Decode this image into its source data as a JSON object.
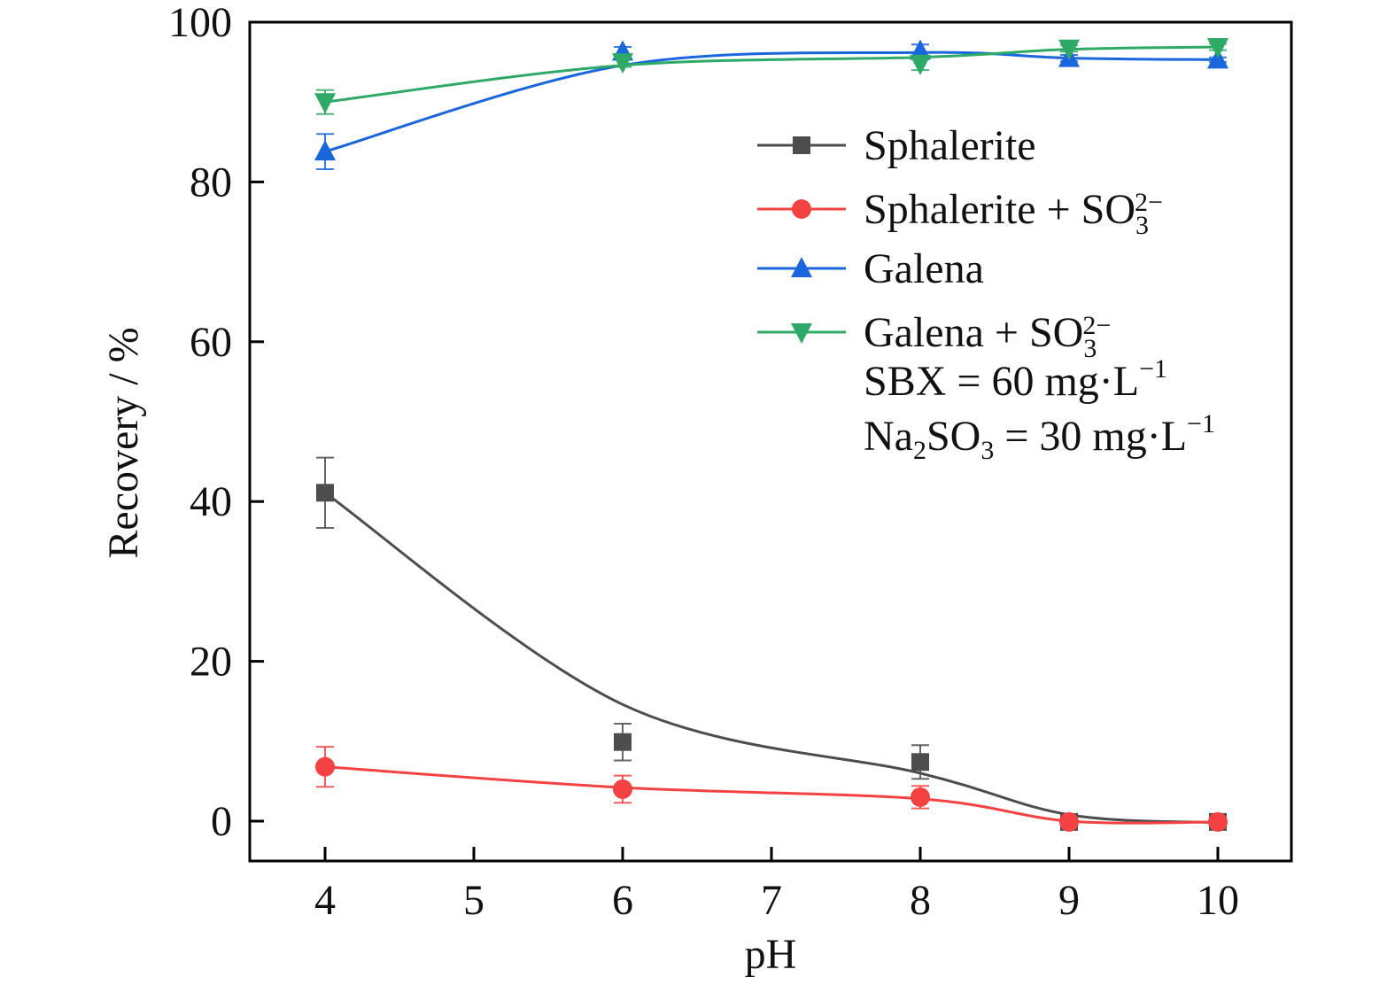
{
  "chart_data": {
    "type": "line",
    "title": "",
    "xlabel": "pH",
    "ylabel": "Recovery / %",
    "xlim": [
      3.5,
      10.5
    ],
    "ylim": [
      -5,
      100
    ],
    "xticks": [
      4,
      5,
      6,
      7,
      8,
      9,
      10
    ],
    "yticks": [
      0,
      20,
      40,
      60,
      80,
      100
    ],
    "grid": false,
    "legend_position": "top-right",
    "x": [
      4,
      6,
      8,
      9,
      10
    ],
    "series": [
      {
        "name": "Sphalerite",
        "legend_parts": [
          "Sphalerite"
        ],
        "color": "#4d4d4d",
        "marker": "square",
        "values": [
          41.1,
          9.9,
          7.4,
          -0.1,
          -0.1
        ],
        "errors": [
          4.4,
          2.3,
          2.1,
          0.0,
          0.0
        ],
        "fit": [
          41.1,
          14.6,
          6.0,
          0.8,
          -0.2
        ]
      },
      {
        "name": "Sphalerite + SO3 2−",
        "legend_parts": [
          "Sphalerite + SO",
          "3",
          "2−"
        ],
        "color": "#f44242",
        "marker": "circle",
        "values": [
          6.8,
          4.0,
          3.0,
          -0.1,
          -0.1
        ],
        "errors": [
          2.5,
          1.7,
          1.4,
          0.0,
          0.0
        ],
        "fit": [
          6.8,
          4.2,
          2.8,
          0.0,
          -0.1
        ]
      },
      {
        "name": "Galena",
        "legend_parts": [
          "Galena"
        ],
        "color": "#1a66dd",
        "marker": "triangle-up",
        "values": [
          83.8,
          96.3,
          96.4,
          95.5,
          95.3
        ],
        "errors": [
          2.2,
          0.6,
          0.8,
          0.4,
          0.3
        ],
        "fit": [
          83.8,
          94.6,
          96.2,
          95.5,
          95.3
        ]
      },
      {
        "name": "Galena + SO3 2−",
        "legend_parts": [
          "Galena + SO",
          "3",
          "2−"
        ],
        "color": "#2eaa66",
        "marker": "triangle-down",
        "values": [
          90.0,
          95.0,
          94.8,
          96.7,
          96.9
        ],
        "errors": [
          1.5,
          0.6,
          0.8,
          0.4,
          0.4
        ],
        "fit": [
          90.0,
          94.6,
          95.6,
          96.6,
          96.9
        ]
      }
    ],
    "annotations": [
      {
        "parts": [
          "SBX = 60 mg·L",
          "−1"
        ]
      },
      {
        "parts": [
          "Na",
          "2",
          "SO",
          "3",
          " = 30 mg·L",
          "−1"
        ]
      }
    ]
  }
}
